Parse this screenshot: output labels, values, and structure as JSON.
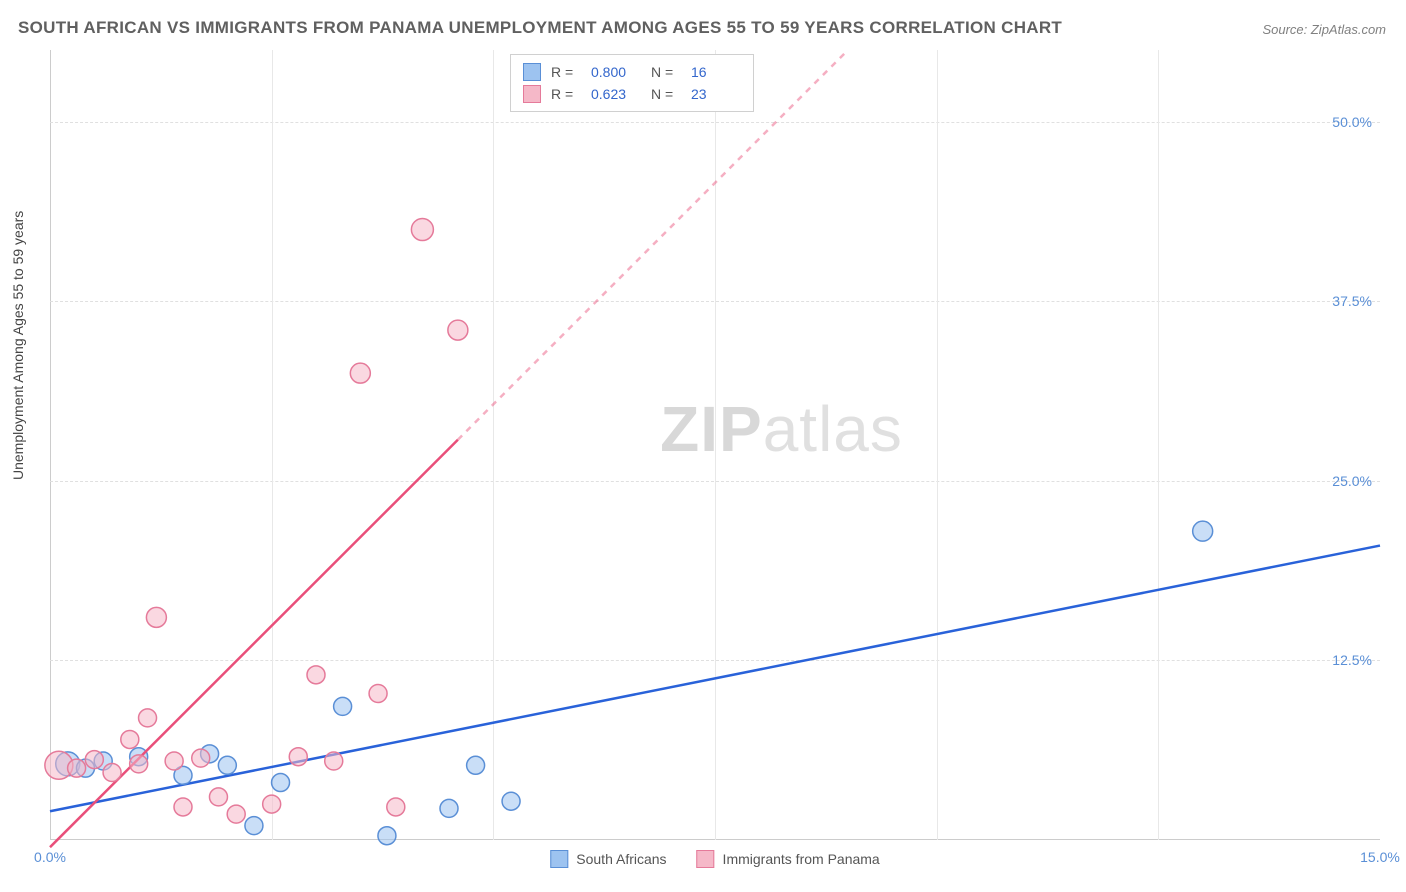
{
  "title": "SOUTH AFRICAN VS IMMIGRANTS FROM PANAMA UNEMPLOYMENT AMONG AGES 55 TO 59 YEARS CORRELATION CHART",
  "source": "Source: ZipAtlas.com",
  "yaxis_label": "Unemployment Among Ages 55 to 59 years",
  "watermark_bold": "ZIP",
  "watermark_light": "atlas",
  "chart": {
    "type": "scatter",
    "xlim": [
      0,
      15
    ],
    "ylim": [
      0,
      55
    ],
    "x_ticks": [
      {
        "v": 0,
        "label": "0.0%"
      },
      {
        "v": 15,
        "label": "15.0%"
      }
    ],
    "y_ticks": [
      {
        "v": 12.5,
        "label": "12.5%"
      },
      {
        "v": 25,
        "label": "25.0%"
      },
      {
        "v": 37.5,
        "label": "37.5%"
      },
      {
        "v": 50,
        "label": "50.0%"
      }
    ],
    "grid_vertical_step": 2.5,
    "background_color": "#ffffff",
    "grid_color": "#e0e0e0",
    "series": [
      {
        "name": "South Africans",
        "color_fill": "#9dc3f0",
        "color_stroke": "#5a8fd6",
        "r_value": "0.800",
        "n_value": "16",
        "marker_radius": 9,
        "marker_opacity": 0.55,
        "regression": {
          "x1": 0,
          "y1": 2.0,
          "x2": 15,
          "y2": 20.5,
          "solid_until_x": 15,
          "color": "#2962d9",
          "width": 2.5
        },
        "points": [
          {
            "x": 0.2,
            "y": 5.3,
            "r": 12
          },
          {
            "x": 0.4,
            "y": 5.0,
            "r": 9
          },
          {
            "x": 0.6,
            "y": 5.5,
            "r": 9
          },
          {
            "x": 1.0,
            "y": 5.8,
            "r": 9
          },
          {
            "x": 1.5,
            "y": 4.5,
            "r": 9
          },
          {
            "x": 1.8,
            "y": 6.0,
            "r": 9
          },
          {
            "x": 2.0,
            "y": 5.2,
            "r": 9
          },
          {
            "x": 2.3,
            "y": 1.0,
            "r": 9
          },
          {
            "x": 2.6,
            "y": 4.0,
            "r": 9
          },
          {
            "x": 3.3,
            "y": 9.3,
            "r": 9
          },
          {
            "x": 3.8,
            "y": 0.3,
            "r": 9
          },
          {
            "x": 4.5,
            "y": 2.2,
            "r": 9
          },
          {
            "x": 4.8,
            "y": 5.2,
            "r": 9
          },
          {
            "x": 5.2,
            "y": 2.7,
            "r": 9
          },
          {
            "x": 13.0,
            "y": 21.5,
            "r": 10
          }
        ]
      },
      {
        "name": "Immigrants from Panama",
        "color_fill": "#f5b8c8",
        "color_stroke": "#e57a9a",
        "r_value": "0.623",
        "n_value": "23",
        "marker_radius": 9,
        "marker_opacity": 0.55,
        "regression": {
          "x1": 0,
          "y1": -0.5,
          "x2": 9.0,
          "y2": 55,
          "solid_until_x": 4.6,
          "color": "#e94f7a",
          "width": 2.5
        },
        "points": [
          {
            "x": 0.1,
            "y": 5.2,
            "r": 14
          },
          {
            "x": 0.3,
            "y": 5.0,
            "r": 9
          },
          {
            "x": 0.5,
            "y": 5.6,
            "r": 9
          },
          {
            "x": 0.7,
            "y": 4.7,
            "r": 9
          },
          {
            "x": 0.9,
            "y": 7.0,
            "r": 9
          },
          {
            "x": 1.0,
            "y": 5.3,
            "r": 9
          },
          {
            "x": 1.1,
            "y": 8.5,
            "r": 9
          },
          {
            "x": 1.2,
            "y": 15.5,
            "r": 10
          },
          {
            "x": 1.4,
            "y": 5.5,
            "r": 9
          },
          {
            "x": 1.5,
            "y": 2.3,
            "r": 9
          },
          {
            "x": 1.7,
            "y": 5.7,
            "r": 9
          },
          {
            "x": 1.9,
            "y": 3.0,
            "r": 9
          },
          {
            "x": 2.1,
            "y": 1.8,
            "r": 9
          },
          {
            "x": 2.5,
            "y": 2.5,
            "r": 9
          },
          {
            "x": 2.8,
            "y": 5.8,
            "r": 9
          },
          {
            "x": 3.0,
            "y": 11.5,
            "r": 9
          },
          {
            "x": 3.2,
            "y": 5.5,
            "r": 9
          },
          {
            "x": 3.5,
            "y": 32.5,
            "r": 10
          },
          {
            "x": 3.7,
            "y": 10.2,
            "r": 9
          },
          {
            "x": 3.9,
            "y": 2.3,
            "r": 9
          },
          {
            "x": 4.2,
            "y": 42.5,
            "r": 11
          },
          {
            "x": 4.6,
            "y": 35.5,
            "r": 10
          }
        ]
      }
    ]
  },
  "legend_top": {
    "r_label": "R =",
    "n_label": "N ="
  },
  "legend_bottom": [
    {
      "label": "South Africans",
      "fill": "#9dc3f0",
      "stroke": "#5a8fd6"
    },
    {
      "label": "Immigrants from Panama",
      "fill": "#f5b8c8",
      "stroke": "#e57a9a"
    }
  ]
}
